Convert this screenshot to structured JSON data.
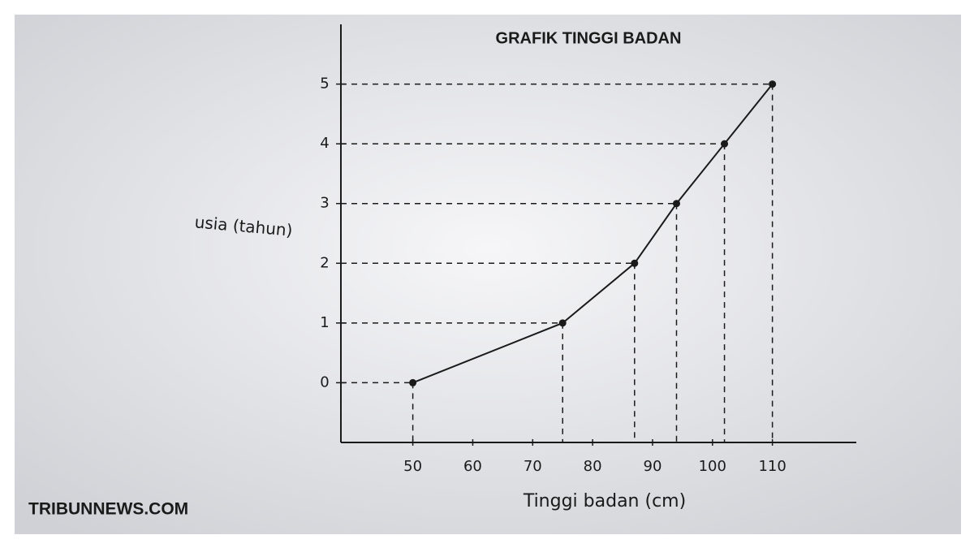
{
  "chart_data": {
    "type": "line",
    "title": "GRAFIK TINGGI BADAN",
    "x_label": "Tinggi badan (cm)",
    "y_label": "usia (tahun)",
    "watermark": "TRIBUNNEWS.COM",
    "x": [
      50,
      75,
      87,
      94,
      102,
      110
    ],
    "values": [
      0,
      1,
      2,
      3,
      4,
      5
    ],
    "color": "#1a1a1a",
    "guides": true,
    "xlim": [
      38,
      124
    ],
    "xticks": [
      50,
      60,
      70,
      80,
      90,
      100,
      110
    ],
    "ylim": [
      -1,
      6
    ],
    "yticks": [
      0,
      1,
      2,
      3,
      4,
      5
    ]
  }
}
